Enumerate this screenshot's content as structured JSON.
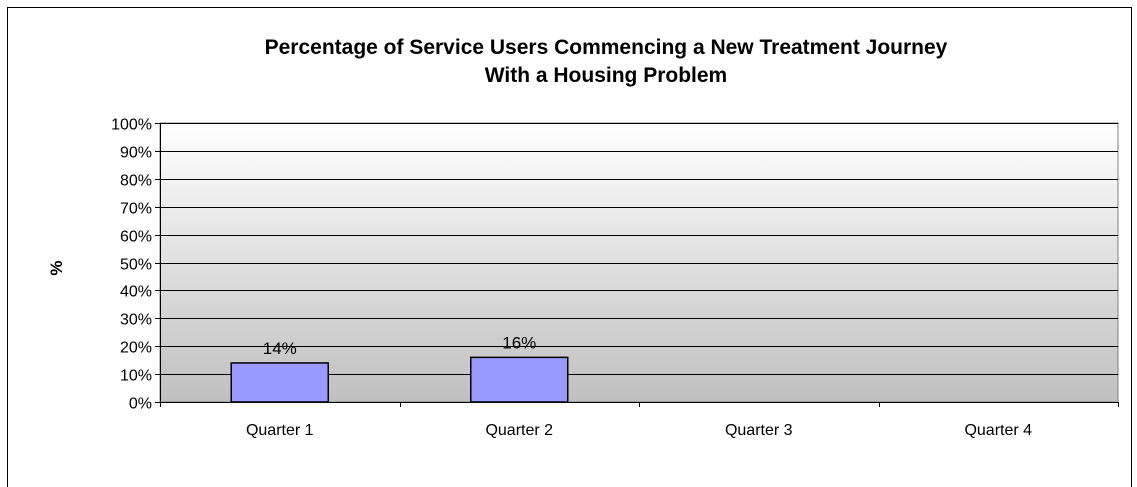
{
  "chart_data": {
    "type": "bar",
    "title_lines": [
      "Percentage of Service Users Commencing a New Treatment Journey",
      "With a Housing Problem"
    ],
    "xlabel": "",
    "ylabel": "%",
    "categories": [
      "Quarter 1",
      "Quarter 2",
      "Quarter 3",
      "Quarter 4"
    ],
    "values": [
      14,
      16,
      null,
      null
    ],
    "value_labels": [
      "14%",
      "16%",
      "",
      ""
    ],
    "ylim": [
      0,
      100
    ],
    "y_ticks": [
      0,
      10,
      20,
      30,
      40,
      50,
      60,
      70,
      80,
      90,
      100
    ],
    "y_tick_labels": [
      "0%",
      "10%",
      "20%",
      "30%",
      "40%",
      "50%",
      "60%",
      "70%",
      "80%",
      "90%",
      "100%"
    ],
    "grid": true,
    "legend": "none",
    "colors": {
      "bar_fill": "#9999FF",
      "bar_stroke": "#000000",
      "plot_bg_top": "#FFFFFF",
      "plot_bg_bottom": "#C0C0C0",
      "gridline": "#000000"
    }
  }
}
